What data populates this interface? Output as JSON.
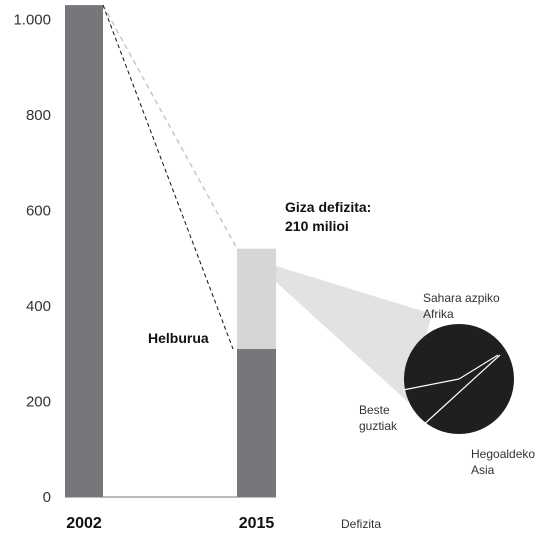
{
  "chart_data": {
    "type": "bar",
    "ylim": [
      0,
      1030
    ],
    "yticks": [
      0,
      200,
      400,
      600,
      800,
      1000
    ],
    "ytick_labels": [
      "0",
      "200",
      "400",
      "600",
      "800",
      "1.000"
    ],
    "categories": [
      "2002",
      "2015"
    ],
    "bars": [
      {
        "category": "2002",
        "segments": [
          {
            "value": 1030,
            "color": "#77767b"
          }
        ]
      },
      {
        "category": "2015",
        "segments": [
          {
            "value": 310,
            "color": "#77767b"
          },
          {
            "value": 210,
            "color": "#d6d6d7"
          }
        ]
      }
    ],
    "target_value": 310,
    "annotations": {
      "target_label": "Helburua",
      "deficit_title_line1": "Giza defizita:",
      "deficit_title_line2": "210 milioi",
      "deficit_legend": "Defizita"
    },
    "pie": {
      "type": "pie",
      "color": "#1f1f22",
      "slices": [
        {
          "label_line1": "Sahara azpiko",
          "label_line2": "Afrika",
          "share": 0.33
        },
        {
          "label_line1": "Hegoaldeko",
          "label_line2": "Asia",
          "share": 0.5
        },
        {
          "label_line1": "Beste",
          "label_line2": "guztiak",
          "share": 0.17
        }
      ]
    },
    "colors": {
      "bar_dark": "#77767b",
      "bar_light": "#d6d6d7",
      "pie": "#1f1f22",
      "callout": "#e2e2e3"
    }
  }
}
